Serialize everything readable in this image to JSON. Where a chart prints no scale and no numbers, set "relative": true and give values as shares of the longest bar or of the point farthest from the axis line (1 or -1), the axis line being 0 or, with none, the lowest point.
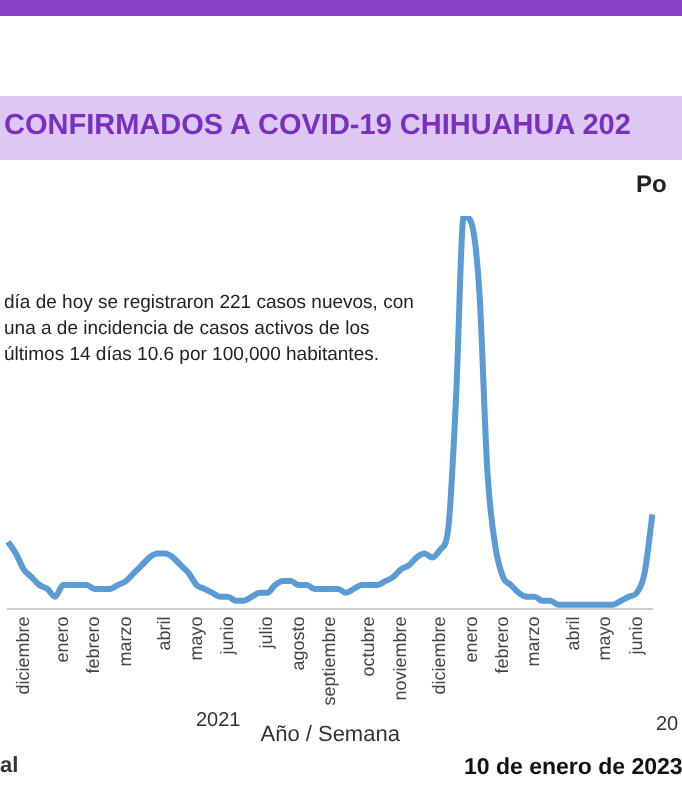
{
  "chart_data": {
    "type": "line",
    "title": "CONFIRMADOS A COVID-19 CHIHUAHUA 202",
    "xlabel": "Año / Semana",
    "relative": true,
    "legend": false,
    "grid": false,
    "marker": "none",
    "categories": [
      null,
      null,
      "diciembre",
      null,
      null,
      null,
      null,
      "enero",
      null,
      null,
      null,
      "febrero",
      null,
      null,
      null,
      "marzo",
      null,
      null,
      null,
      null,
      "abril",
      null,
      null,
      null,
      "mayo",
      null,
      null,
      null,
      "junio",
      null,
      null,
      null,
      null,
      "julio",
      null,
      null,
      null,
      "agosto",
      null,
      null,
      null,
      "septiembre",
      null,
      null,
      null,
      null,
      "octubre",
      null,
      null,
      null,
      "noviembre",
      null,
      null,
      null,
      null,
      "diciembre",
      null,
      null,
      null,
      "enero",
      null,
      null,
      null,
      "febrero",
      null,
      null,
      null,
      "marzo",
      null,
      null,
      null,
      null,
      "abril",
      null,
      null,
      null,
      "mayo",
      null,
      null,
      null,
      "junio",
      null,
      null
    ],
    "series": [
      {
        "color": "#5b9bd5",
        "values": [
          0.17,
          0.14,
          0.1,
          0.08,
          0.06,
          0.05,
          0.03,
          0.06,
          0.06,
          0.06,
          0.06,
          0.05,
          0.05,
          0.05,
          0.06,
          0.07,
          0.09,
          0.11,
          0.13,
          0.14,
          0.14,
          0.13,
          0.11,
          0.09,
          0.06,
          0.05,
          0.04,
          0.03,
          0.03,
          0.02,
          0.02,
          0.03,
          0.04,
          0.04,
          0.06,
          0.07,
          0.07,
          0.06,
          0.06,
          0.05,
          0.05,
          0.05,
          0.05,
          0.04,
          0.05,
          0.06,
          0.06,
          0.06,
          0.07,
          0.08,
          0.1,
          0.11,
          0.13,
          0.14,
          0.13,
          0.15,
          0.2,
          0.53,
          1,
          0.98,
          0.8,
          0.35,
          0.16,
          0.08,
          0.06,
          0.04,
          0.03,
          0.03,
          0.02,
          0.02,
          0.01,
          0.01,
          0.01,
          0.01,
          0.01,
          0.01,
          0.01,
          0.01,
          0.02,
          0.03,
          0.04,
          0.09,
          0.24
        ]
      }
    ],
    "annotations": [
      "día de hoy se registraron 221 casos nuevos, con una a de incidencia de casos activos de los últimos 14 días 10.6 por 100,000 habitantes.",
      "Po",
      "2021",
      "20",
      "al",
      "10 de enero de 2023"
    ]
  }
}
